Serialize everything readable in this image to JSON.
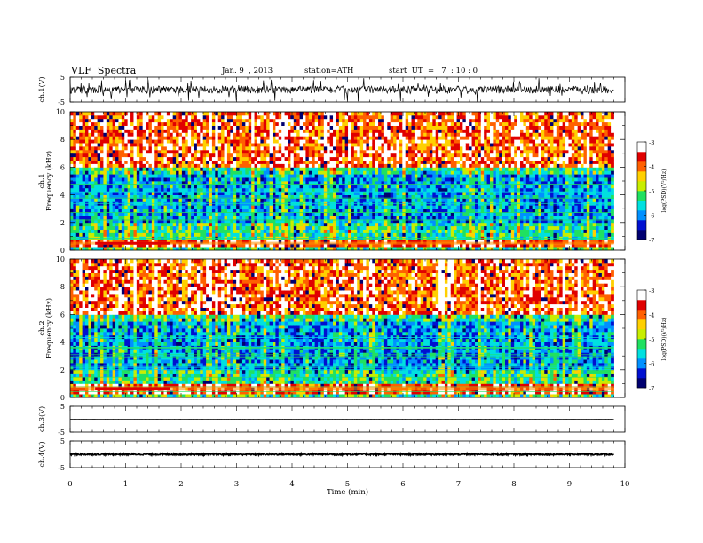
{
  "header": {
    "title": "VLF  Spectra",
    "date": "Jan. 9  , 2013",
    "station": "station=ATH",
    "start": "start  UT  =   7  : 10 : 0"
  },
  "chart_data": [
    {
      "type": "line",
      "panel": "ch1-waveform",
      "ylabel": "ch.1(V)",
      "ylim": [
        -5,
        5
      ],
      "yticks": [
        "5",
        "-5"
      ],
      "baseline": 0,
      "description_values": {
        "mean": 0.0,
        "typical_amplitude": 1.5,
        "spike_max": 5
      }
    },
    {
      "type": "heatmap",
      "panel": "ch1-spectrogram",
      "ylabel_top": "ch.1",
      "ylabel": "Frequency  (kHz)",
      "ylim": [
        0,
        10
      ],
      "yticks": [
        "0",
        "2",
        "4",
        "6",
        "8",
        "10"
      ],
      "xlim": [
        0,
        10
      ],
      "data_extent_min": 9.8,
      "colorbar": {
        "label": "log(PSD)(V²/Hz)",
        "range": [
          -7,
          -3
        ],
        "ticks": [
          "-3",
          "-4",
          "-5",
          "-6",
          "-7"
        ]
      },
      "dominant_band_khz": [
        0.4,
        0.6
      ],
      "low_psd_region_khz": [
        2.0,
        5.5
      ],
      "high_psd_region_khz": [
        6.0,
        10.0
      ]
    },
    {
      "type": "heatmap",
      "panel": "ch2-spectrogram",
      "ylabel_top": "ch.2",
      "ylabel": "Frequency  (kHz)",
      "ylim": [
        0,
        10
      ],
      "yticks": [
        "0",
        "2",
        "4",
        "6",
        "8",
        "10"
      ],
      "xlim": [
        0,
        10
      ],
      "data_extent_min": 9.8,
      "colorbar": {
        "label": "log(PSD)(V²/Hz)",
        "range": [
          -7,
          -3
        ],
        "ticks": [
          "-3",
          "-4",
          "-5",
          "-6",
          "-7"
        ]
      },
      "dominant_band_khz": [
        0.5,
        0.8
      ],
      "low_psd_region_khz": [
        2.0,
        5.5
      ],
      "high_psd_region_khz": [
        6.0,
        10.0
      ]
    },
    {
      "type": "line",
      "panel": "ch3-waveform",
      "ylabel": "ch.3(V)",
      "ylim": [
        -5,
        5
      ],
      "yticks": [
        "5",
        "-5"
      ],
      "baseline": 0,
      "description_values": {
        "mean": 0.0,
        "typical_amplitude": 0.05
      }
    },
    {
      "type": "line",
      "panel": "ch4-waveform",
      "ylabel": "ch.4(V)",
      "ylim": [
        -5,
        5
      ],
      "yticks": [
        "5",
        "-5"
      ],
      "baseline": 0,
      "description_values": {
        "mean": 0.0,
        "typical_amplitude": 0.3
      }
    }
  ],
  "xaxis": {
    "label": "Time  (min)",
    "range": [
      0,
      10
    ],
    "ticks": [
      "0",
      "1",
      "2",
      "3",
      "4",
      "5",
      "6",
      "7",
      "8",
      "9",
      "10"
    ]
  },
  "colors": {
    "scale": [
      "#000070",
      "#0010d0",
      "#0090ff",
      "#00e0e0",
      "#20e060",
      "#c8ee00",
      "#ffd000",
      "#ff6000",
      "#e00000",
      "#ffffff"
    ]
  }
}
